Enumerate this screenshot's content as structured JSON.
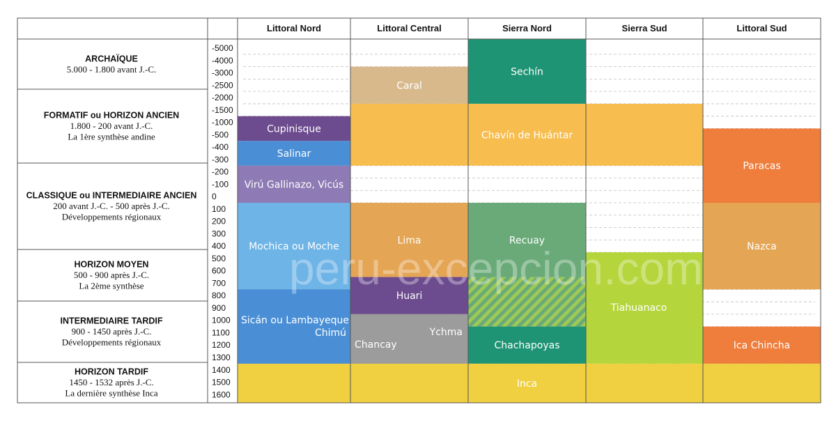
{
  "columns": [
    "Littoral Nord",
    "Littoral Central",
    "Sierra Nord",
    "Sierra Sud",
    "Littoral Sud"
  ],
  "periods": [
    {
      "title": "ARCHAÏQUE",
      "lines": [
        "5.000 - 1.800 avant J.-C."
      ]
    },
    {
      "title": "FORMATIF ou HORIZON ANCIEN",
      "lines": [
        "1.800 - 200 avant J.-C.",
        "La 1ère synthèse andine"
      ]
    },
    {
      "title": "CLASSIQUE ou INTERMEDIAIRE ANCIEN",
      "lines": [
        "200 avant J.-C. - 500 après J.-C.",
        "Développements régionaux"
      ]
    },
    {
      "title": "HORIZON MOYEN",
      "lines": [
        "500 - 900 après J.-C.",
        "La 2ème synthèse"
      ]
    },
    {
      "title": "INTERMEDIAIRE TARDIF",
      "lines": [
        "900 - 1450 après J.-C.",
        "Développements régionaux"
      ]
    },
    {
      "title": "HORIZON TARDIF",
      "lines": [
        "1450 - 1532 après J.-C.",
        "La dernière synthèse Inca"
      ]
    }
  ],
  "timeline": [
    "-5000",
    "-4000",
    "-3000",
    "-2500",
    "-2000",
    "-1500",
    "-1000",
    "-500",
    "-400",
    "-300",
    "-200",
    "-100",
    "0",
    "100",
    "200",
    "300",
    "400",
    "500",
    "600",
    "700",
    "800",
    "900",
    "1000",
    "1100",
    "1200",
    "1300",
    "1400",
    "1500",
    "1600"
  ],
  "cultures": [
    {
      "name": "Cupinisque",
      "column": 0,
      "from": "-1000",
      "to": "-400",
      "color": "#6c4b8e"
    },
    {
      "name": "Salinar",
      "column": 0,
      "from": "-400",
      "to": "-200",
      "color": "#4a8fd6"
    },
    {
      "name": "Virú Gallinazo, Vicús",
      "column": 0,
      "from": "-200",
      "to": "100",
      "color": "#8e7ab4"
    },
    {
      "name": "Mochica ou Moche",
      "column": 0,
      "from": "100",
      "to": "800",
      "color": "#6eb4e6"
    },
    {
      "name": "Sicán ou Lambayeque",
      "column": 0,
      "from": "800",
      "to": "1400",
      "color": "#4a8fd6"
    },
    {
      "name": "Chimú",
      "column": 0,
      "from": "800",
      "to": "1400",
      "color": "#4a8fd6"
    },
    {
      "name": "Caral",
      "column": 1,
      "from": "-3000",
      "to": "-1500",
      "color": "#d8b98c"
    },
    {
      "name": "",
      "column": 1,
      "from": "-1500",
      "to": "-200",
      "color": "#f7bd4f"
    },
    {
      "name": "Lima",
      "column": 1,
      "from": "100",
      "to": "700",
      "color": "#e4a555"
    },
    {
      "name": "Huari",
      "column": 1,
      "from": "700",
      "to": "1000",
      "color": "#6c4b8e"
    },
    {
      "name": "Chancay",
      "column": 1,
      "from": "1000",
      "to": "1400",
      "color": "#9c9c9c"
    },
    {
      "name": "Ychma",
      "column": 1,
      "from": "1000",
      "to": "1400",
      "color": "#9c9c9c"
    },
    {
      "name": "Sechín",
      "column": 2,
      "from": "-5000",
      "to": "-1500",
      "color": "#1e9474"
    },
    {
      "name": "Chavín de Huántar",
      "column": 2,
      "from": "-1500",
      "to": "-200",
      "color": "#f7bd4f"
    },
    {
      "name": "Recuay",
      "column": 2,
      "from": "100",
      "to": "700",
      "color": "#6aaa78"
    },
    {
      "name": "",
      "column": 2,
      "from": "700",
      "to": "1100",
      "color": "#6aaa78",
      "hatched": true
    },
    {
      "name": "Chachapoyas",
      "column": 2,
      "from": "1100",
      "to": "1400",
      "color": "#1e9474"
    },
    {
      "name": "",
      "column": 3,
      "from": "-1500",
      "to": "-200",
      "color": "#f7bd4f"
    },
    {
      "name": "Tiahuanaco",
      "column": 3,
      "from": "500",
      "to": "1400",
      "color": "#b4d63c"
    },
    {
      "name": "Paracas",
      "column": 4,
      "from": "-500",
      "to": "100",
      "color": "#ef7d3c"
    },
    {
      "name": "Nazca",
      "column": 4,
      "from": "100",
      "to": "800",
      "color": "#e4a555"
    },
    {
      "name": "Ica Chincha",
      "column": 4,
      "from": "1100",
      "to": "1400",
      "color": "#ef7d3c"
    },
    {
      "name": "Inca",
      "column": "all",
      "from": "1400",
      "to": "1600",
      "color": "#f0d040"
    }
  ],
  "watermark": "peru-excepcion.com"
}
